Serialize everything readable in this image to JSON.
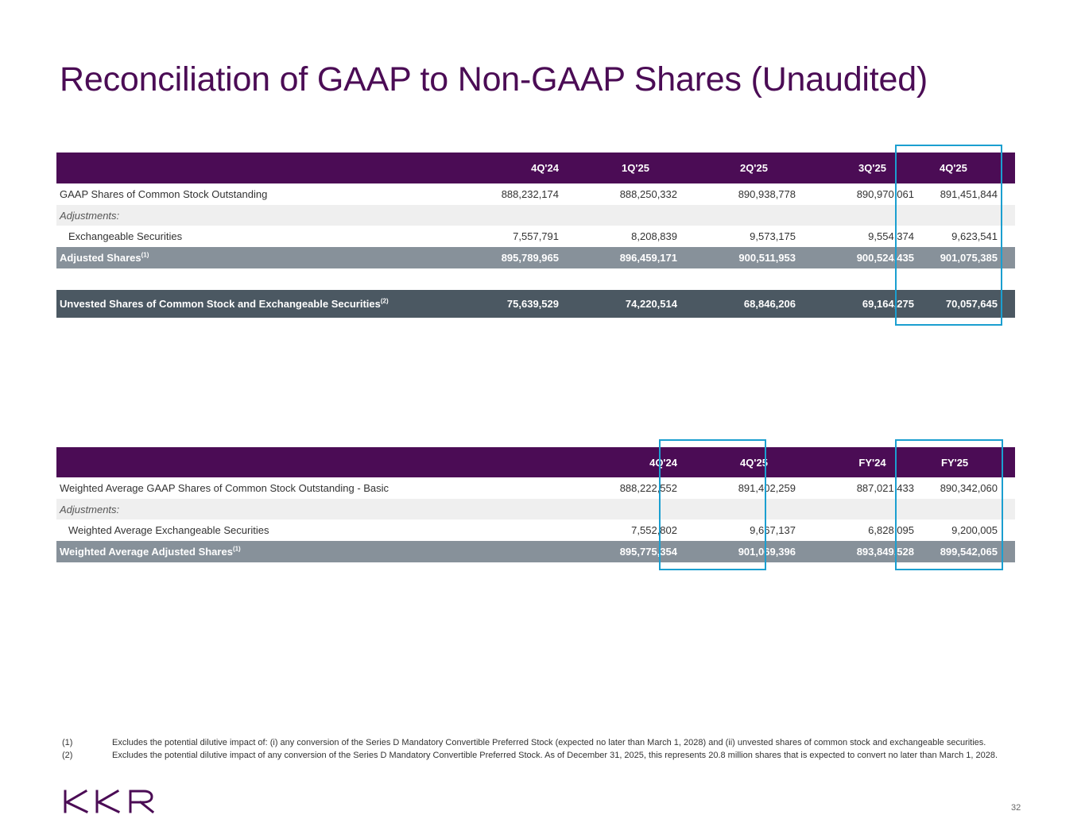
{
  "title": "Reconciliation of GAAP to Non-GAAP Shares (Unaudited)",
  "table1": {
    "columns": [
      "4Q'24",
      "1Q'25",
      "2Q'25",
      "3Q'25",
      "4Q'25"
    ],
    "rows": [
      {
        "label": "GAAP Shares of Common Stock Outstanding",
        "values": [
          "888,232,174",
          "888,250,332",
          "890,938,778",
          "890,970,061",
          "891,451,844"
        ]
      },
      {
        "label": "Adjustments:"
      },
      {
        "label": "Exchangeable Securities",
        "values": [
          "7,557,791",
          "8,208,839",
          "9,573,175",
          "9,554,374",
          "9,623,541"
        ]
      },
      {
        "label": "Adjusted Shares",
        "sup": "(1)",
        "values": [
          "895,789,965",
          "896,459,171",
          "900,511,953",
          "900,524,435",
          "901,075,385"
        ]
      },
      {
        "label": "Unvested Shares of Common Stock and Exchangeable Securities",
        "sup": "(2)",
        "values": [
          "75,639,529",
          "74,220,514",
          "68,846,206",
          "69,164,275",
          "70,057,645"
        ]
      }
    ]
  },
  "table2": {
    "columns": [
      "4Q'24",
      "4Q'25",
      "FY'24",
      "FY'25"
    ],
    "rows": [
      {
        "label": "Weighted Average GAAP Shares of Common Stock Outstanding - Basic",
        "values": [
          "888,222,552",
          "891,402,259",
          "887,021,433",
          "890,342,060"
        ]
      },
      {
        "label": "Adjustments:"
      },
      {
        "label": "Weighted Average Exchangeable Securities",
        "values": [
          "7,552,802",
          "9,667,137",
          "6,828,095",
          "9,200,005"
        ]
      },
      {
        "label": "Weighted Average Adjusted Shares",
        "sup": "(1)",
        "values": [
          "895,775,354",
          "901,069,396",
          "893,849,528",
          "899,542,065"
        ]
      }
    ]
  },
  "footnotes": [
    {
      "num": "(1)",
      "text": "Excludes the potential dilutive impact of: (i) any conversion of the Series D Mandatory Convertible Preferred Stock (expected no later than March 1, 2028) and (ii) unvested shares of common stock and exchangeable securities."
    },
    {
      "num": "(2)",
      "text": "Excludes the potential dilutive impact of any conversion of the Series D Mandatory Convertible Preferred Stock. As of December 31, 2025, this represents 20.8 million shares that is expected to convert no later than March 1, 2028."
    }
  ],
  "logo": "KKR",
  "page_number": "32",
  "colors": {
    "brand": "#4b0c55",
    "highlight": "#1b9fd0",
    "total_row": "#87919a",
    "dark_row": "#4b5862",
    "alt_row": "#efefef"
  }
}
